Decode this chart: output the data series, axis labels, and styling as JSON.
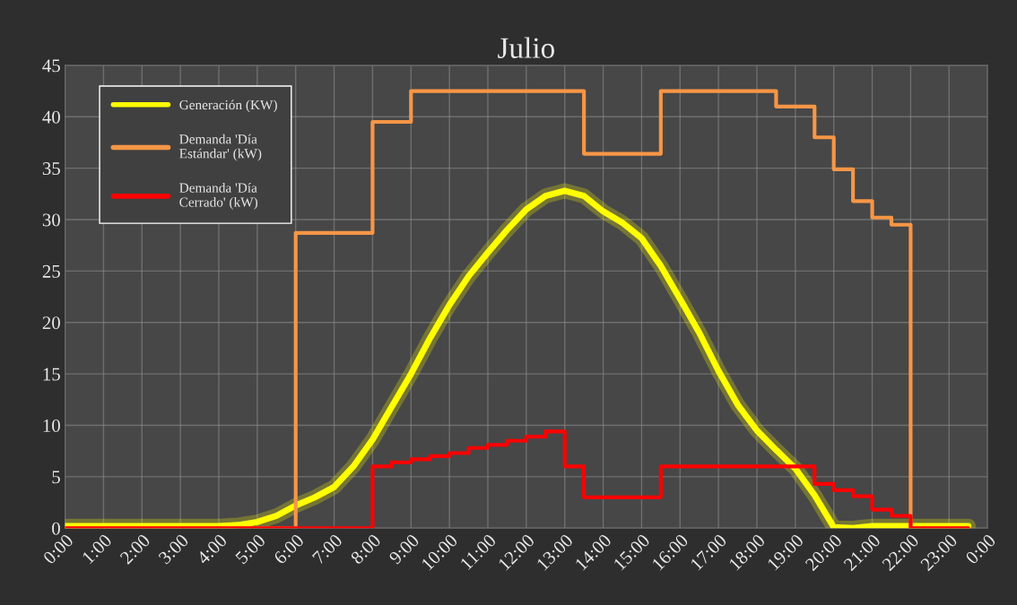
{
  "chart_data": {
    "type": "line",
    "title": "Julio",
    "xlim": [
      0,
      24
    ],
    "ylim": [
      0,
      45
    ],
    "xticks": [
      {
        "value": 0,
        "label": "0:00"
      },
      {
        "value": 1,
        "label": "1:00"
      },
      {
        "value": 2,
        "label": "2:00"
      },
      {
        "value": 3,
        "label": "3:00"
      },
      {
        "value": 4,
        "label": "4:00"
      },
      {
        "value": 5,
        "label": "5:00"
      },
      {
        "value": 6,
        "label": "6:00"
      },
      {
        "value": 7,
        "label": "7:00"
      },
      {
        "value": 8,
        "label": "8:00"
      },
      {
        "value": 9,
        "label": "9:00"
      },
      {
        "value": 10,
        "label": "10:00"
      },
      {
        "value": 11,
        "label": "11:00"
      },
      {
        "value": 12,
        "label": "12:00"
      },
      {
        "value": 13,
        "label": "13:00"
      },
      {
        "value": 14,
        "label": "14:00"
      },
      {
        "value": 15,
        "label": "15:00"
      },
      {
        "value": 16,
        "label": "16:00"
      },
      {
        "value": 17,
        "label": "17:00"
      },
      {
        "value": 18,
        "label": "18:00"
      },
      {
        "value": 19,
        "label": "19:00"
      },
      {
        "value": 20,
        "label": "20:00"
      },
      {
        "value": 21,
        "label": "21:00"
      },
      {
        "value": 22,
        "label": "22:00"
      },
      {
        "value": 23,
        "label": "23:00"
      },
      {
        "value": 24,
        "label": "0:00"
      }
    ],
    "yticks": [
      0,
      5,
      10,
      15,
      20,
      25,
      30,
      35,
      40,
      45
    ],
    "grid": true,
    "legend": "top left",
    "series": [
      {
        "name": "Generación (KW)",
        "color": "#ffff00",
        "x": [
          0,
          1,
          2,
          3,
          4,
          4.5,
          5,
          5.5,
          6,
          6.5,
          7,
          7.5,
          8,
          8.5,
          9,
          9.5,
          10,
          10.5,
          11,
          11.5,
          12,
          12.5,
          13,
          13.5,
          14,
          14.5,
          15,
          15.5,
          16,
          16.5,
          17,
          17.5,
          18,
          18.5,
          19,
          19.5,
          20,
          20.5,
          21,
          22,
          23,
          23.5
        ],
        "values": [
          0.2,
          0.2,
          0.2,
          0.2,
          0.2,
          0.3,
          0.6,
          1.2,
          2.2,
          3.0,
          4.0,
          6.0,
          8.6,
          11.8,
          15.0,
          18.5,
          21.7,
          24.5,
          26.8,
          29.0,
          31.0,
          32.3,
          32.8,
          32.3,
          30.8,
          29.7,
          28.2,
          25.5,
          22.3,
          19.0,
          15.3,
          12.0,
          9.5,
          7.6,
          5.8,
          3.2,
          0.1,
          0.0,
          0.2,
          0.2,
          0.2,
          0.2
        ]
      },
      {
        "name": "Demanda 'Día Estándar' (kW)",
        "type": "step",
        "color": "#f79646",
        "x": [
          0,
          6,
          8,
          9,
          13.5,
          15.5,
          18.5,
          19.5,
          20,
          20.5,
          21,
          21.5,
          22,
          23.5
        ],
        "values": [
          0,
          28.7,
          39.5,
          42.5,
          36.4,
          42.5,
          41.0,
          38.0,
          34.9,
          31.8,
          30.2,
          29.5,
          0,
          0
        ]
      },
      {
        "name": "Demanda 'Día Cerrado' (kW)",
        "type": "step",
        "color": "#ff0000",
        "x": [
          0,
          8,
          8.5,
          9,
          9.5,
          10,
          10.5,
          11,
          11.5,
          12,
          12.5,
          13,
          13.5,
          15.5,
          19.5,
          20,
          20.5,
          21,
          21.5,
          22,
          23.5
        ],
        "values": [
          0,
          6.0,
          6.4,
          6.7,
          7.0,
          7.3,
          7.8,
          8.1,
          8.5,
          8.9,
          9.4,
          6.0,
          3.0,
          6.0,
          4.3,
          3.7,
          3.1,
          1.8,
          1.2,
          0,
          0
        ]
      }
    ]
  }
}
